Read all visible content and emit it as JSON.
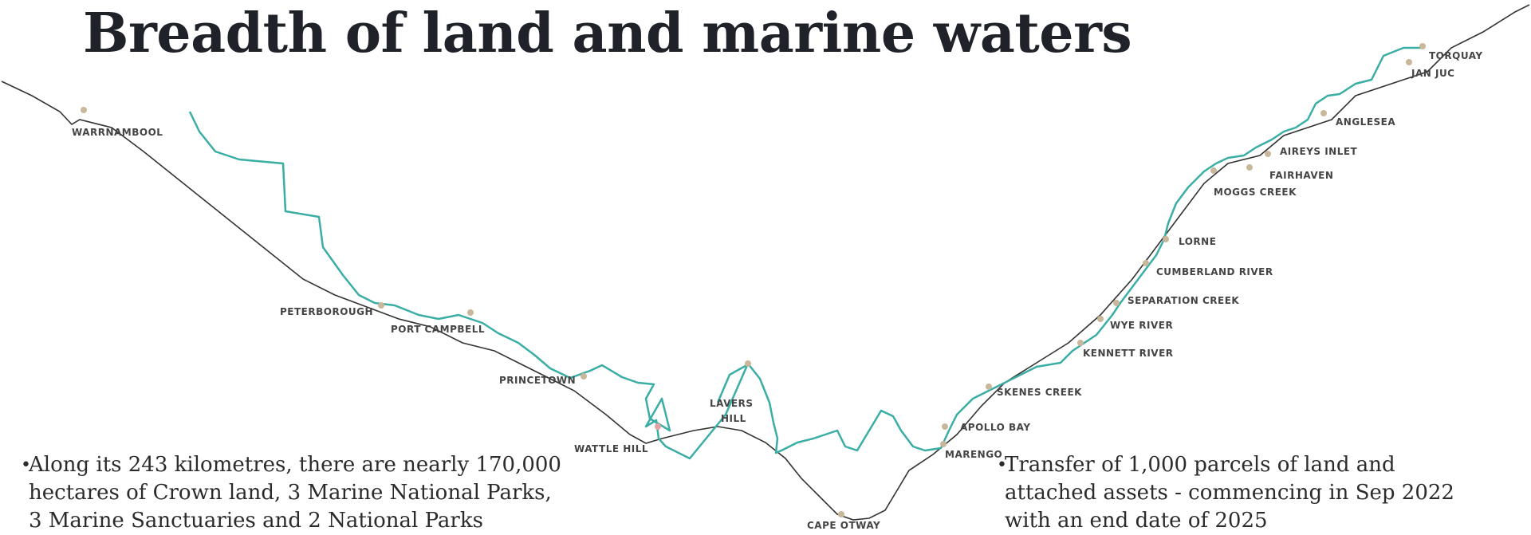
{
  "title": "Breadth of land and marine waters",
  "map": {
    "colors": {
      "road": "#3aaea5",
      "coast": "#333333",
      "marker": "#c8b79a",
      "marker_alt": "#e6a3a3"
    },
    "places": {
      "warrnambool": "WARRNAMBOOL",
      "peterborough": "PETERBOROUGH",
      "port_campbell": "PORT CAMPBELL",
      "princetown": "PRINCETOWN",
      "wattle_hill": "WATTLE HILL",
      "lavers_hill_1": "LAVERS",
      "lavers_hill_2": "HILL",
      "cape_otway": "CAPE OTWAY",
      "marengo": "MARENGO",
      "apollo_bay": "APOLLO BAY",
      "skenes_creek": "SKENES CREEK",
      "kennett_river": "KENNETT RIVER",
      "wye_river": "WYE RIVER",
      "separation_creek": "SEPARATION CREEK",
      "cumberland_river": "CUMBERLAND RIVER",
      "lorne": "LORNE",
      "moggs_creek": "MOGGS CREEK",
      "fairhaven": "FAIRHAVEN",
      "aireys_inlet": "AIREYS INLET",
      "anglesea": "ANGLESEA",
      "jan_juc": "JAN JUC",
      "torquay": "TORQUAY"
    }
  },
  "bullets": {
    "left": "Along its 243 kilometres, there are nearly 170,000\nhectares of Crown land, 3 Marine National Parks,\n3 Marine Sanctuaries and 2 National Parks",
    "right": "Transfer of 1,000 parcels of land and\nattached assets - commencing in Sep 2022\nwith an end date of 2025",
    "marker": "•"
  }
}
